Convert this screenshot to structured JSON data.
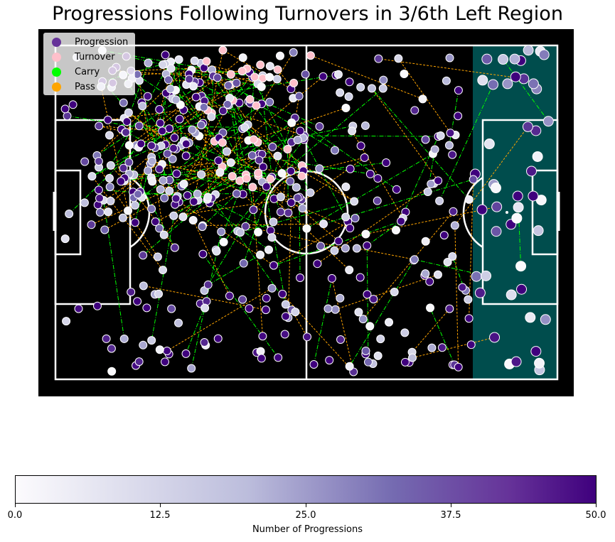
{
  "colors": {
    "background": "#000000",
    "pitch_lines": "#ffffff",
    "highlight_zone": "#004d4d",
    "progression": "#663399",
    "turnover": "#ffc0cb",
    "carry": "#00ff00",
    "pass": "#ffa500",
    "cmap_low": "#fcfbfd",
    "cmap_high": "#3f007d"
  },
  "chart_data": {
    "type": "scatter",
    "title": "Progressions Following Turnovers in 3/6th Left Region",
    "legend": {
      "placement": "top-left",
      "entries": [
        {
          "label": "Progression",
          "color": "#663399"
        },
        {
          "label": "Turnover",
          "color": "#ffc0cb"
        },
        {
          "label": "Carry",
          "color": "#00ff00"
        },
        {
          "label": "Pass",
          "color": "#ffa500"
        }
      ]
    },
    "pitch": {
      "length": 120,
      "width": 80,
      "highlight_zone_x": [
        100,
        120
      ]
    },
    "colorbar": {
      "label": "Number of Progressions",
      "range": [
        0,
        50
      ],
      "ticks": [
        "0.0",
        "12.5",
        "25.0",
        "37.5",
        "50.0"
      ]
    },
    "seed": 7
  }
}
